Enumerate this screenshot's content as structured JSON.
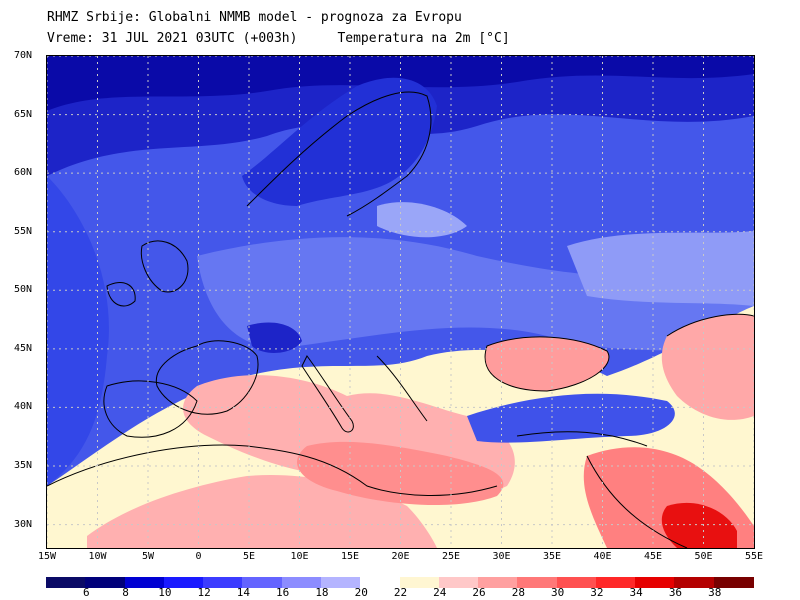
{
  "header": {
    "line1": "RHMZ Srbije: Globalni NMMB model - prognoza za Evropu",
    "valid_time": "Vreme: 31 JUL 2021 03UTC (+003h)",
    "field": "Temperatura na 2m [°C]"
  },
  "axes": {
    "lat_labels": [
      "70N",
      "65N",
      "60N",
      "55N",
      "50N",
      "45N",
      "40N",
      "35N",
      "30N"
    ],
    "lat_values": [
      70,
      65,
      60,
      55,
      50,
      45,
      40,
      35,
      30
    ],
    "lon_labels": [
      "15W",
      "10W",
      "5W",
      "0",
      "5E",
      "10E",
      "15E",
      "20E",
      "25E",
      "30E",
      "35E",
      "40E",
      "45E",
      "50E",
      "55E"
    ],
    "lon_values": [
      -15,
      -10,
      -5,
      0,
      5,
      10,
      15,
      20,
      25,
      30,
      35,
      40,
      45,
      50,
      55
    ],
    "lon_range": [
      -15,
      55
    ],
    "lat_range": [
      28,
      70
    ],
    "gridlines": true
  },
  "colorbar": {
    "labels": [
      "6",
      "8",
      "10",
      "12",
      "14",
      "16",
      "18",
      "20",
      "22",
      "24",
      "26",
      "28",
      "30",
      "32",
      "34",
      "36",
      "38"
    ],
    "colors": [
      "#0a0a66",
      "#00007a",
      "#0000d2",
      "#1a1aff",
      "#3c3cff",
      "#6464ff",
      "#8c8cff",
      "#b4b4ff",
      "#ffffff",
      "#fff6d2",
      "#ffc8c8",
      "#ffa0a0",
      "#ff7878",
      "#ff5050",
      "#ff2828",
      "#e60000",
      "#b40000",
      "#780000"
    ]
  },
  "colors": {
    "ocean": "#2b3fe0",
    "land_cold_north": "#3a4fe6",
    "land_mid": "#5a6cf0",
    "land_pale": "#9aa6f8",
    "warm_pale": "#fff7d0",
    "warm_pink": "#ffb6b6",
    "warm_red": "#ff8a8a",
    "hot": "#e81010"
  }
}
